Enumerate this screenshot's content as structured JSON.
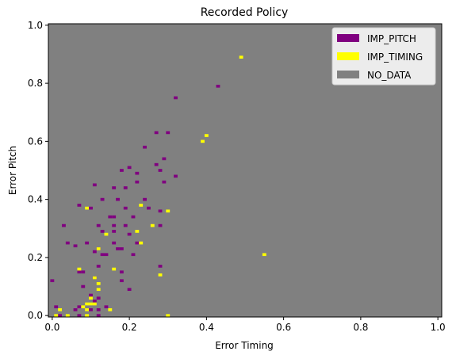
{
  "chart_data": {
    "type": "heatmap",
    "title": "Recorded Policy",
    "xlabel": "Error Timing",
    "ylabel": "Error Pitch",
    "xlim": [
      -0.01,
      1.01
    ],
    "ylim": [
      -0.005,
      1.005
    ],
    "xticks": [
      0.0,
      0.2,
      0.4,
      0.6,
      0.8,
      1.0
    ],
    "yticks": [
      0.0,
      0.2,
      0.4,
      0.6,
      0.8,
      1.0
    ],
    "xtick_labels": [
      "0.0",
      "0.2",
      "0.4",
      "0.6",
      "0.8",
      "1.0"
    ],
    "ytick_labels": [
      "0.0",
      "0.2",
      "0.4",
      "0.6",
      "0.8",
      "1.0"
    ],
    "cell_size": 0.01,
    "background_class": "NO_DATA",
    "legend": {
      "placement": "upper right",
      "entries": [
        {
          "label": "IMP_PITCH",
          "color": "#800080"
        },
        {
          "label": "IMP_TIMING",
          "color": "#ffff00"
        },
        {
          "label": "NO_DATA",
          "color": "#808080"
        }
      ]
    },
    "series": [
      {
        "name": "IMP_PITCH",
        "color": "#800080",
        "points": [
          [
            0.43,
            0.79
          ],
          [
            0.32,
            0.75
          ],
          [
            0.27,
            0.63
          ],
          [
            0.3,
            0.63
          ],
          [
            0.24,
            0.58
          ],
          [
            0.29,
            0.54
          ],
          [
            0.2,
            0.51
          ],
          [
            0.27,
            0.52
          ],
          [
            0.18,
            0.5
          ],
          [
            0.22,
            0.49
          ],
          [
            0.28,
            0.5
          ],
          [
            0.32,
            0.48
          ],
          [
            0.22,
            0.46
          ],
          [
            0.29,
            0.46
          ],
          [
            0.11,
            0.45
          ],
          [
            0.16,
            0.44
          ],
          [
            0.19,
            0.44
          ],
          [
            0.13,
            0.4
          ],
          [
            0.17,
            0.4
          ],
          [
            0.24,
            0.4
          ],
          [
            0.07,
            0.38
          ],
          [
            0.1,
            0.37
          ],
          [
            0.19,
            0.37
          ],
          [
            0.25,
            0.37
          ],
          [
            0.28,
            0.36
          ],
          [
            0.15,
            0.34
          ],
          [
            0.16,
            0.34
          ],
          [
            0.21,
            0.34
          ],
          [
            0.03,
            0.31
          ],
          [
            0.12,
            0.31
          ],
          [
            0.16,
            0.31
          ],
          [
            0.19,
            0.31
          ],
          [
            0.28,
            0.31
          ],
          [
            0.13,
            0.29
          ],
          [
            0.16,
            0.29
          ],
          [
            0.2,
            0.28
          ],
          [
            0.04,
            0.25
          ],
          [
            0.09,
            0.25
          ],
          [
            0.16,
            0.25
          ],
          [
            0.22,
            0.25
          ],
          [
            0.06,
            0.24
          ],
          [
            0.12,
            0.23
          ],
          [
            0.17,
            0.23
          ],
          [
            0.18,
            0.23
          ],
          [
            0.11,
            0.22
          ],
          [
            0.14,
            0.21
          ],
          [
            0.13,
            0.21
          ],
          [
            0.21,
            0.21
          ],
          [
            0.12,
            0.17
          ],
          [
            0.28,
            0.17
          ],
          [
            0.08,
            0.15
          ],
          [
            0.07,
            0.15
          ],
          [
            0.18,
            0.15
          ],
          [
            0.11,
            0.13
          ],
          [
            0.18,
            0.12
          ],
          [
            0.0,
            0.12
          ],
          [
            0.08,
            0.1
          ],
          [
            0.2,
            0.09
          ],
          [
            0.1,
            0.07
          ],
          [
            0.12,
            0.06
          ],
          [
            0.11,
            0.05
          ],
          [
            0.07,
            0.03
          ],
          [
            0.14,
            0.03
          ],
          [
            0.01,
            0.03
          ],
          [
            0.06,
            0.02
          ],
          [
            0.1,
            0.02
          ],
          [
            0.12,
            0.02
          ],
          [
            0.02,
            0.0
          ],
          [
            0.07,
            0.0
          ],
          [
            0.12,
            0.0
          ]
        ]
      },
      {
        "name": "IMP_TIMING",
        "color": "#ffff00",
        "points": [
          [
            0.49,
            0.89
          ],
          [
            0.4,
            0.62
          ],
          [
            0.39,
            0.6
          ],
          [
            0.09,
            0.37
          ],
          [
            0.23,
            0.38
          ],
          [
            0.3,
            0.36
          ],
          [
            0.22,
            0.29
          ],
          [
            0.26,
            0.31
          ],
          [
            0.14,
            0.28
          ],
          [
            0.23,
            0.25
          ],
          [
            0.55,
            0.21
          ],
          [
            0.12,
            0.23
          ],
          [
            0.07,
            0.16
          ],
          [
            0.16,
            0.16
          ],
          [
            0.28,
            0.14
          ],
          [
            0.11,
            0.13
          ],
          [
            0.12,
            0.11
          ],
          [
            0.1,
            0.06
          ],
          [
            0.12,
            0.09
          ],
          [
            0.09,
            0.04
          ],
          [
            0.1,
            0.04
          ],
          [
            0.11,
            0.04
          ],
          [
            0.08,
            0.03
          ],
          [
            0.02,
            0.02
          ],
          [
            0.09,
            0.02
          ],
          [
            0.15,
            0.02
          ],
          [
            0.01,
            0.0
          ],
          [
            0.04,
            0.0
          ],
          [
            0.09,
            0.0
          ],
          [
            0.3,
            0.0
          ]
        ]
      }
    ]
  }
}
